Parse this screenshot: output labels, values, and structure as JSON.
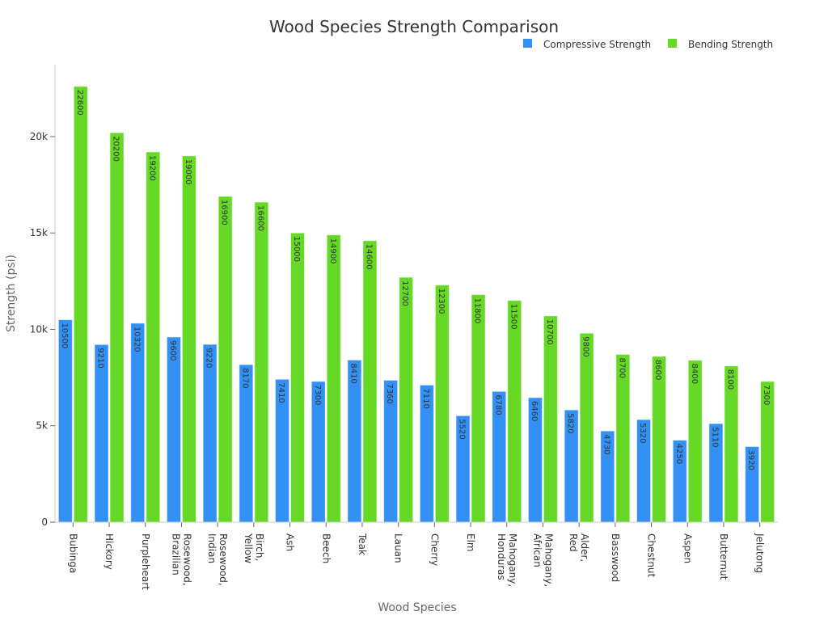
{
  "chart_data": {
    "type": "bar",
    "title": "Wood Species Strength Comparison",
    "xlabel": "Wood Species",
    "ylabel": "Strength (psi)",
    "ylim": [
      0,
      23730
    ],
    "yticks": [
      0,
      5000,
      10000,
      15000,
      20000
    ],
    "ytick_labels": [
      "0",
      "5k",
      "10k",
      "15k",
      "20k"
    ],
    "grid": false,
    "legend": "top-right",
    "categories": [
      "Bubinga",
      "Hickory",
      "Purpleheart",
      "Rosewood, Brazilian",
      "Rosewood, Indian",
      "Birch, Yellow",
      "Ash",
      "Beech",
      "Teak",
      "Lauan",
      "Cherry",
      "Elm",
      "Mahogany, Honduras",
      "Mahogany, African",
      "Alder, Red",
      "Basswood",
      "Chestnut",
      "Aspen",
      "Butternut",
      "Jelutong"
    ],
    "series": [
      {
        "name": "Compressive Strength",
        "color": "#3390f5",
        "values": [
          10500,
          9210,
          10320,
          9600,
          9220,
          8170,
          7410,
          7300,
          8410,
          7360,
          7110,
          5520,
          6780,
          6460,
          5820,
          4730,
          5320,
          4250,
          5110,
          3920
        ]
      },
      {
        "name": "Bending Strength",
        "color": "#66d926",
        "values": [
          22600,
          20200,
          19200,
          19000,
          16900,
          16600,
          15000,
          14900,
          14600,
          12700,
          12300,
          11800,
          11500,
          10700,
          9800,
          8700,
          8600,
          8400,
          8100,
          7300
        ]
      }
    ]
  }
}
